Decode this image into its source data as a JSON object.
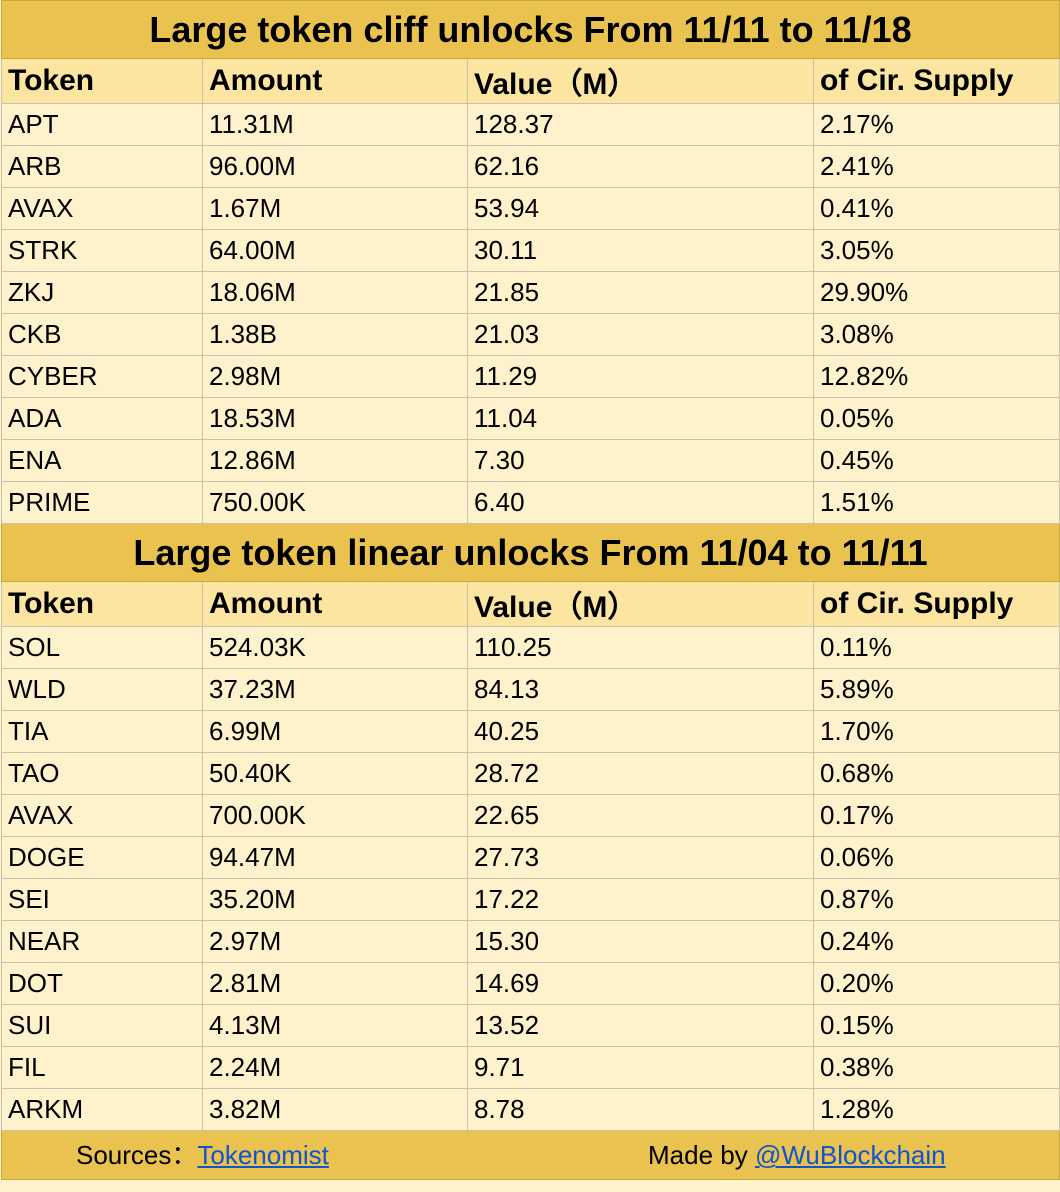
{
  "cliff": {
    "title": "Large token cliff unlocks From 11/11 to 11/18",
    "headers": [
      "Token",
      "Amount",
      "Value（M）",
      "of Cir. Supply"
    ],
    "rows": [
      [
        "APT",
        "11.31M",
        "128.37",
        "2.17%"
      ],
      [
        "ARB",
        "96.00M",
        "62.16",
        "2.41%"
      ],
      [
        "AVAX",
        "1.67M",
        "53.94",
        "0.41%"
      ],
      [
        "STRK",
        "64.00M",
        "30.11",
        "3.05%"
      ],
      [
        "ZKJ",
        "18.06M",
        "21.85",
        "29.90%"
      ],
      [
        "CKB",
        "1.38B",
        "21.03",
        "3.08%"
      ],
      [
        "CYBER",
        "2.98M",
        "11.29",
        "12.82%"
      ],
      [
        "ADA",
        "18.53M",
        "11.04",
        "0.05%"
      ],
      [
        "ENA",
        "12.86M",
        "7.30",
        "0.45%"
      ],
      [
        "PRIME",
        "750.00K",
        "6.40",
        "1.51%"
      ]
    ]
  },
  "linear": {
    "title": "Large token linear unlocks From 11/04 to 11/11",
    "headers": [
      "Token",
      "Amount",
      "Value（M）",
      "of Cir. Supply"
    ],
    "rows": [
      [
        "SOL",
        "524.03K",
        "110.25",
        "0.11%"
      ],
      [
        "WLD",
        "37.23M",
        "84.13",
        "5.89%"
      ],
      [
        "TIA",
        "6.99M",
        "40.25",
        "1.70%"
      ],
      [
        "TAO",
        "50.40K",
        "28.72",
        "0.68%"
      ],
      [
        "AVAX",
        "700.00K",
        "22.65",
        "0.17%"
      ],
      [
        "DOGE",
        "94.47M",
        "27.73",
        "0.06%"
      ],
      [
        "SEI",
        "35.20M",
        "17.22",
        "0.87%"
      ],
      [
        "NEAR",
        "2.97M",
        "15.30",
        "0.24%"
      ],
      [
        "DOT",
        "2.81M",
        "14.69",
        "0.20%"
      ],
      [
        "SUI",
        "4.13M",
        "13.52",
        "0.15%"
      ],
      [
        "FIL",
        "2.24M",
        "9.71",
        "0.38%"
      ],
      [
        "ARKM",
        "3.82M",
        "8.78",
        "1.28%"
      ]
    ]
  },
  "footer": {
    "sources_label": "Sources：",
    "sources_link": "Tokenomist",
    "made_by_label": "Made by ",
    "made_by_link": "@WuBlockchain"
  }
}
